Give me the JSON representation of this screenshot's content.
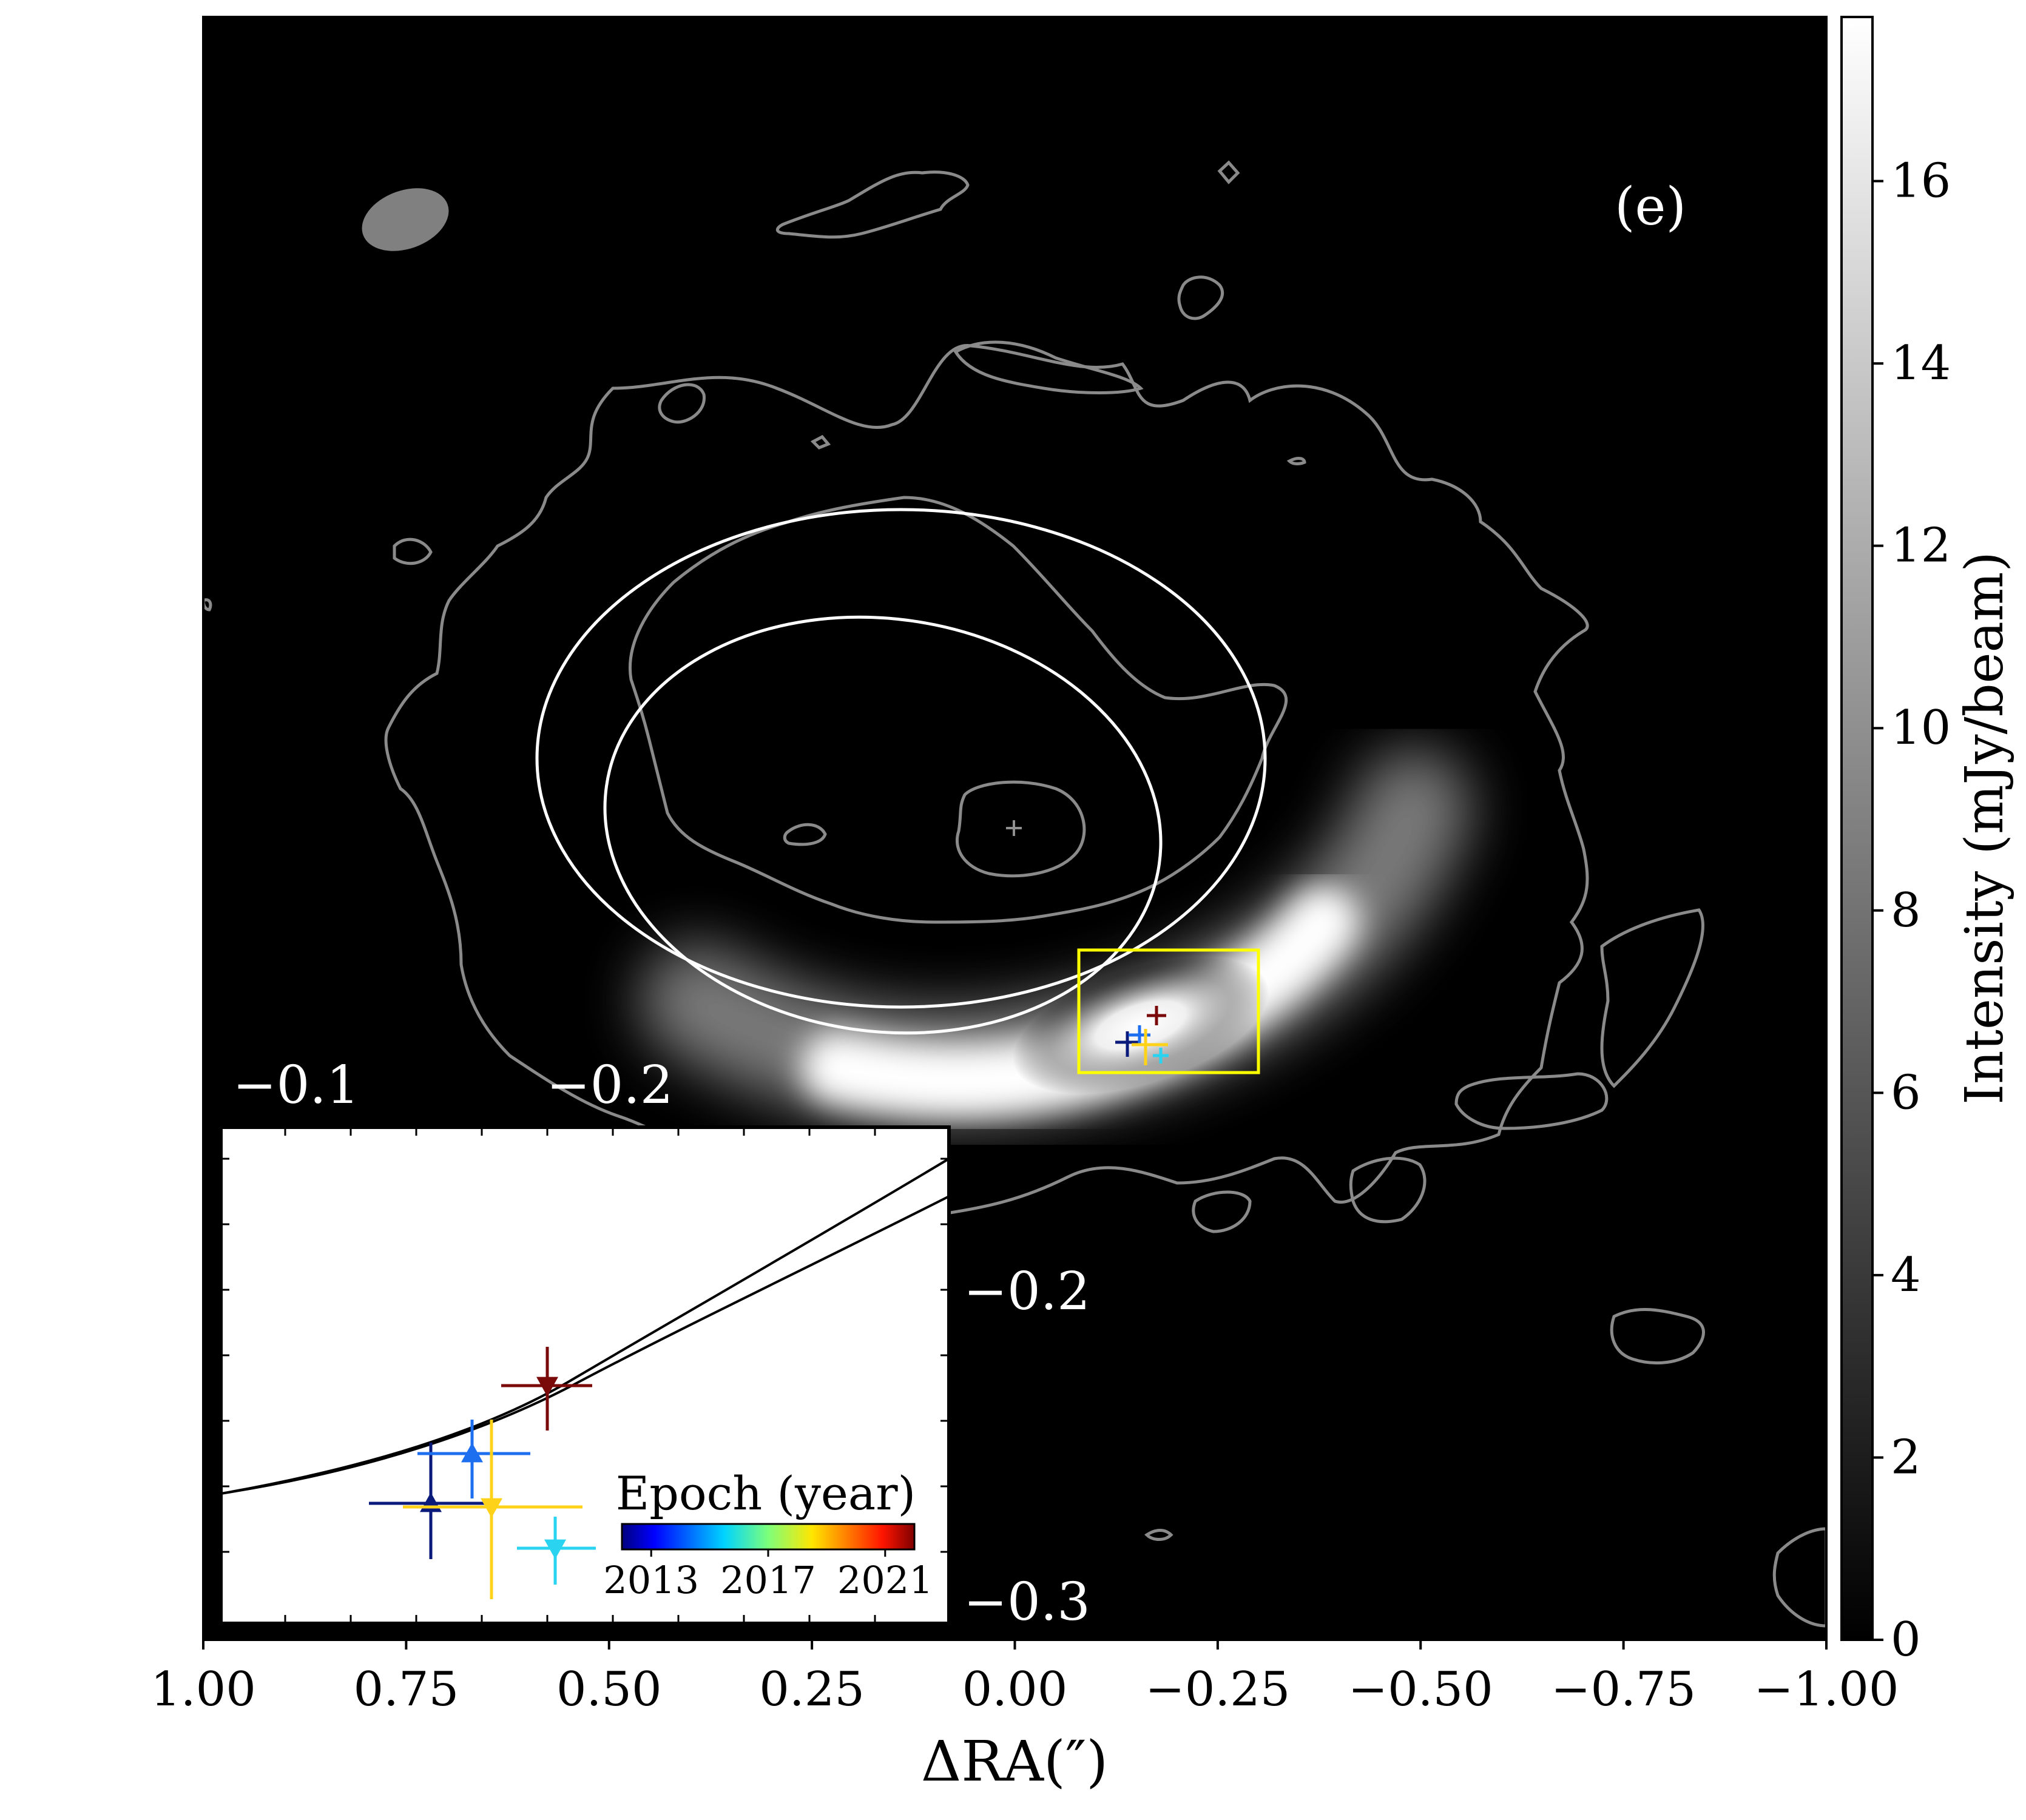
{
  "chart_data": {
    "type": "image-map",
    "panel_label": "(e)",
    "xlabel": "ΔRA(″)",
    "xlim": [
      1.0,
      -1.0
    ],
    "x_ticks": [
      {
        "v": 1.0,
        "label": "1.00"
      },
      {
        "v": 0.75,
        "label": "0.75"
      },
      {
        "v": 0.5,
        "label": "0.50"
      },
      {
        "v": 0.25,
        "label": "0.25"
      },
      {
        "v": 0.0,
        "label": "0.00"
      },
      {
        "v": -0.25,
        "label": "−0.25"
      },
      {
        "v": -0.5,
        "label": "−0.50"
      },
      {
        "v": -0.75,
        "label": "−0.75"
      },
      {
        "v": -1.0,
        "label": "−1.00"
      }
    ],
    "colorbar": {
      "label": "Intensity (mJy/beam)",
      "range": [
        0,
        17.8
      ],
      "colormap": "gray",
      "ticks": [
        {
          "v": 0,
          "label": "0"
        },
        {
          "v": 2,
          "label": "2"
        },
        {
          "v": 4,
          "label": "4"
        },
        {
          "v": 6,
          "label": "6"
        },
        {
          "v": 8,
          "label": "8"
        },
        {
          "v": 10,
          "label": "10"
        },
        {
          "v": 12,
          "label": "12"
        },
        {
          "v": 14,
          "label": "14"
        },
        {
          "v": 16,
          "label": "16"
        }
      ]
    },
    "contour_color": "#8a8a8a",
    "ellipse_color": "#ffffff",
    "zoom_box_color": "#ffff00",
    "beam_color": "#808080",
    "inset": {
      "top_tick_labels": [
        {
          "v": -0.1,
          "label": "−0.1"
        },
        {
          "v": -0.2,
          "label": "−0.2"
        }
      ],
      "right_tick_labels": [
        {
          "v": -0.2,
          "label": "−0.2"
        },
        {
          "v": -0.3,
          "label": "−0.3"
        }
      ],
      "legend_title": "Epoch (year)",
      "legend_ticks": [
        {
          "v": 2013,
          "label": "2013"
        },
        {
          "v": 2017,
          "label": "2017"
        },
        {
          "v": 2021,
          "label": "2021"
        }
      ],
      "epoch_range": [
        2012.0,
        2022.0
      ],
      "colormap": "jet",
      "points": [
        {
          "epoch": 2013.0,
          "marker": "triangle-up",
          "color": "#0a1a7a"
        },
        {
          "epoch": 2015.4,
          "marker": "triangle-up",
          "color": "#1e6ef0"
        },
        {
          "epoch": 2016.2,
          "marker": "triangle-down",
          "color": "#2ad4f0"
        },
        {
          "epoch": 2019.0,
          "marker": "triangle-down",
          "color": "#ffd21a"
        },
        {
          "epoch": 2021.8,
          "marker": "triangle-down",
          "color": "#7a0a0a"
        }
      ]
    }
  }
}
